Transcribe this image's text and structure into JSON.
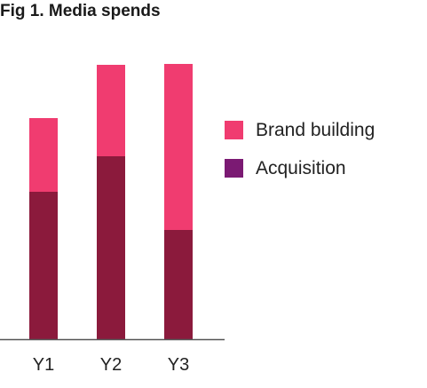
{
  "chart_data": {
    "type": "bar",
    "stacked": true,
    "title": "Fig 1. Media spends",
    "xlabel": "",
    "ylabel": "",
    "categories": [
      "Y1",
      "Y2",
      "Y3"
    ],
    "series": [
      {
        "name": "Acquisition",
        "color": "#8b1a3c",
        "values": [
          166,
          206,
          123
        ]
      },
      {
        "name": "Brand building",
        "color": "#f03c70",
        "values": [
          83,
          103,
          187
        ]
      }
    ],
    "legend": [
      {
        "name": "Brand building",
        "color": "#f03c70"
      },
      {
        "name": "Acquisition",
        "color": "#7b1a73"
      }
    ],
    "legend_position": "right",
    "y_axis_visible": false,
    "grid": false
  }
}
